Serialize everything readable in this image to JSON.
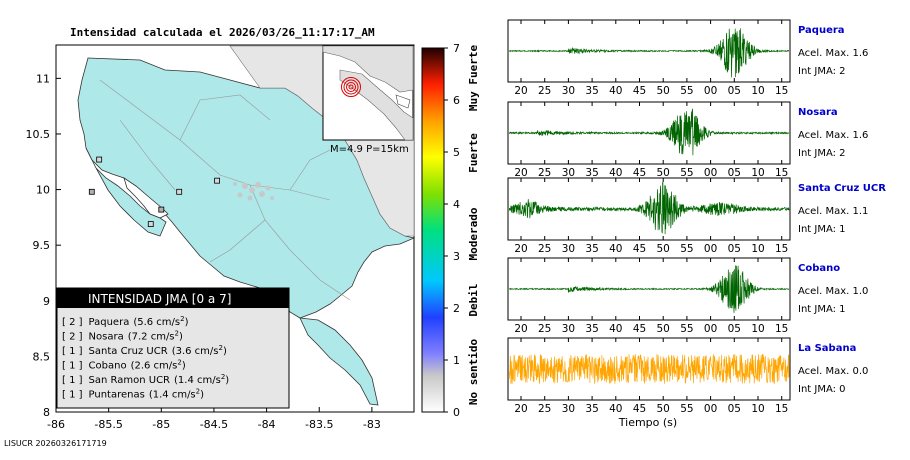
{
  "title": "Intensidad calculada el 2026/03/26_11:17:17_AM",
  "map": {
    "x_ticks": [
      -86,
      -85.5,
      -85,
      -84.5,
      -84,
      -83.5,
      -83
    ],
    "y_ticks": [
      8,
      8.5,
      9,
      9.5,
      10,
      10.5,
      11
    ],
    "x_range": [
      -86,
      -82.6
    ],
    "y_range": [
      8,
      11.3
    ],
    "inset_label": "M=4.9 P=15km",
    "legend_title": "INTENSIDAD JMA [0 a 7]",
    "stations": [
      {
        "jma": "[ 2 ]",
        "name": "Paquera",
        "accel": "(5.6 cm/s",
        "lon": -85.0,
        "lat": 9.82,
        "color": "#b0b0b0"
      },
      {
        "jma": "[ 2 ]",
        "name": "Nosara",
        "accel": "(7.2 cm/s",
        "lon": -85.66,
        "lat": 9.98,
        "color": "#b0b0b0"
      },
      {
        "jma": "[ 1 ]",
        "name": "Santa Cruz UCR",
        "accel": "(3.6 cm/s",
        "lon": -85.59,
        "lat": 10.27,
        "color": "#d8d8d8"
      },
      {
        "jma": "[ 1 ]",
        "name": "Cobano",
        "accel": "(2.6 cm/s",
        "lon": -85.1,
        "lat": 9.69,
        "color": "#d8d8d8"
      },
      {
        "jma": "[ 1 ]",
        "name": "San Ramon UCR",
        "accel": "(1.4 cm/s",
        "lon": -84.47,
        "lat": 10.08,
        "color": "#d8d8d8"
      },
      {
        "jma": "[ 1 ]",
        "name": "Puntarenas",
        "accel": "(1.4 cm/s",
        "lon": -84.83,
        "lat": 9.98,
        "color": "#d8d8d8"
      }
    ],
    "unit_sup": "2",
    "unit_close": ")"
  },
  "colorbar": {
    "ticks": [
      0,
      1,
      2,
      3,
      4,
      5,
      6,
      7
    ],
    "labels": [
      "No sentido",
      "Debil",
      "Moderado",
      "Fuerte",
      "Muy Fuerte"
    ]
  },
  "chart_data": {
    "type": "line",
    "xlabel": "Tiempo (s)",
    "x_ticks": [
      "20",
      "25",
      "30",
      "35",
      "40",
      "45",
      "50",
      "55",
      "00",
      "05",
      "10",
      "15"
    ],
    "series": [
      {
        "name": "Paquera",
        "accel_label": "Acel. Max. 1.6",
        "int_label": "Int JMA: 2",
        "color": "#006400",
        "onset": 30,
        "burst": 65,
        "noise": 0.02,
        "peak": 1.0
      },
      {
        "name": "Nosara",
        "accel_label": "Acel. Max. 1.6",
        "int_label": "Int JMA: 2",
        "color": "#006400",
        "onset": 23.5,
        "burst": 55,
        "noise": 0.03,
        "peak": 1.0
      },
      {
        "name": "Santa Cruz UCR",
        "accel_label": "Acel. Max. 1.1",
        "int_label": "Int JMA: 1",
        "color": "#006400",
        "onset": 21,
        "burst": 50,
        "noise": 0.06,
        "peak": 0.95
      },
      {
        "name": "Cobano",
        "accel_label": "Acel. Max. 1.0",
        "int_label": "Int JMA: 1",
        "color": "#006400",
        "onset": 30,
        "burst": 65,
        "noise": 0.02,
        "peak": 0.9
      },
      {
        "name": "La Sabana",
        "accel_label": "Acel. Max. 0.0",
        "int_label": "Int JMA: 0",
        "color": "#ffa500",
        "onset": 17,
        "burst": 0,
        "noise": 0.55,
        "peak": 0.0
      }
    ]
  },
  "footer": "LISUCR 20260326171719"
}
